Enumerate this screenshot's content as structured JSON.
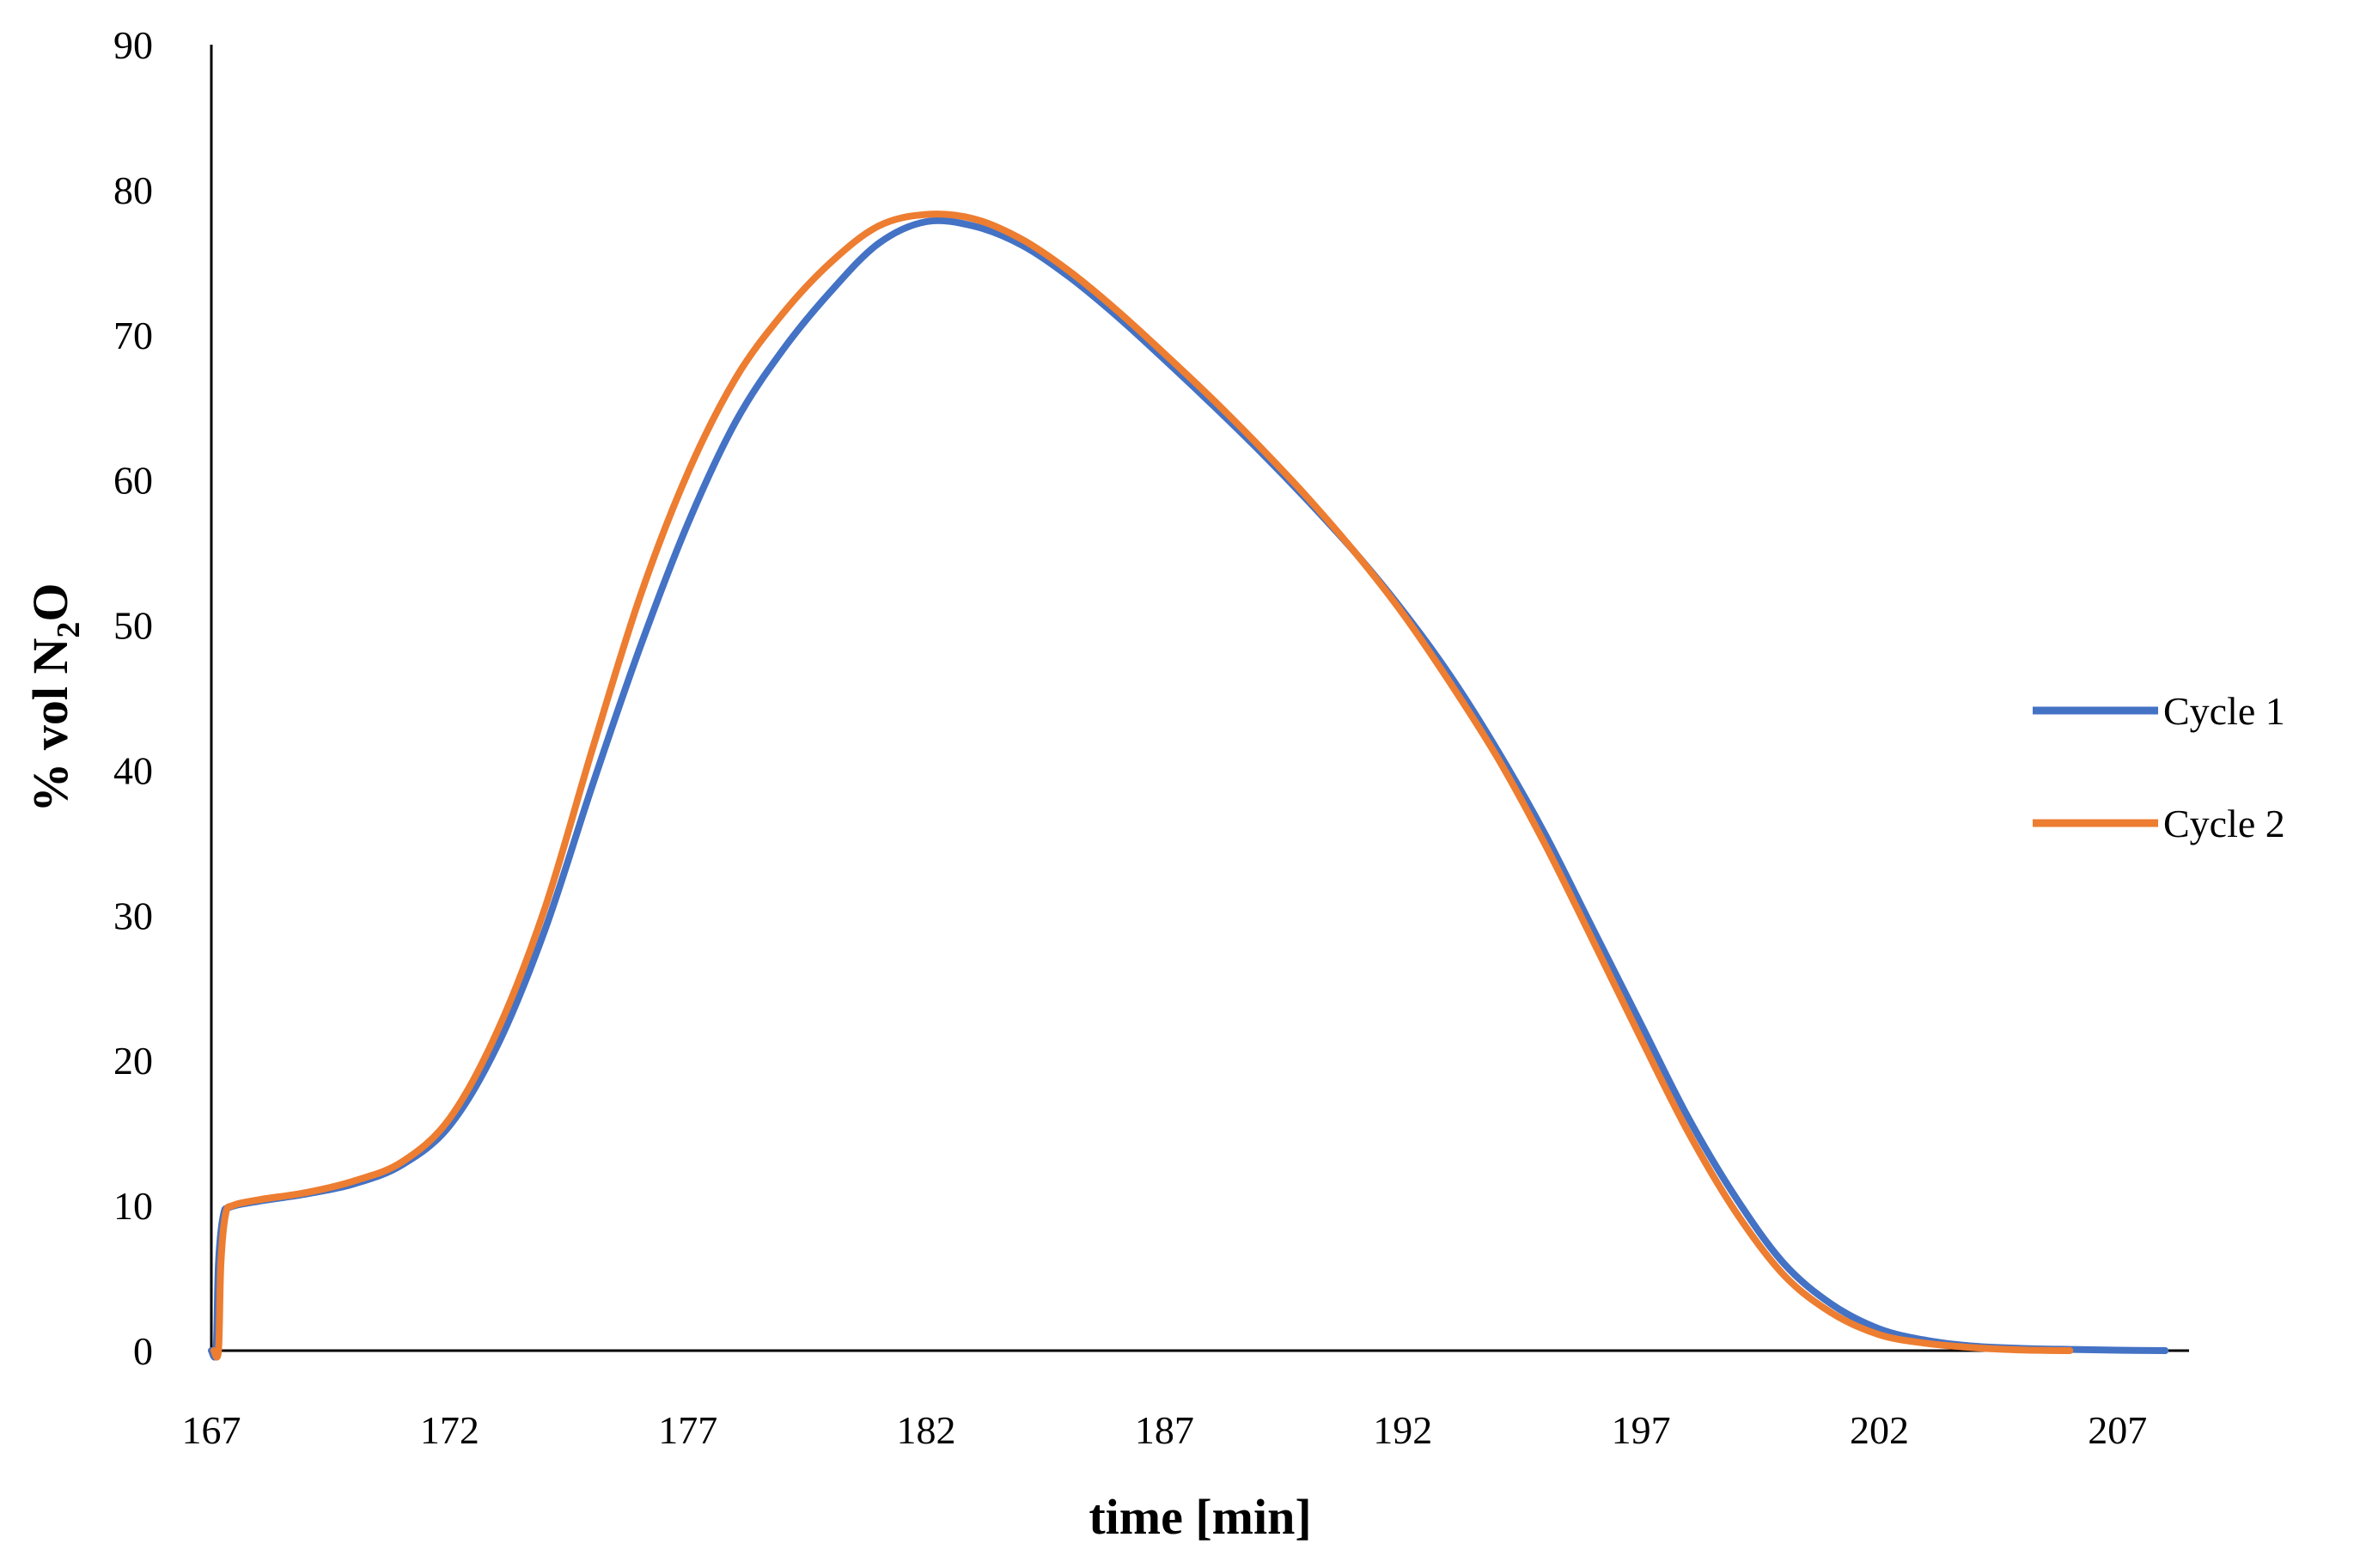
{
  "chart_data": {
    "type": "line",
    "title": "",
    "xlabel": "time [min]",
    "ylabel_parts": [
      "% vol N",
      "2",
      "O"
    ],
    "xlim": [
      167,
      208.5
    ],
    "ylim": [
      0,
      90
    ],
    "x_ticks": [
      "167",
      "172",
      "177",
      "182",
      "187",
      "192",
      "197",
      "202",
      "207"
    ],
    "y_ticks": [
      "0",
      "10",
      "20",
      "30",
      "40",
      "50",
      "60",
      "70",
      "80",
      "90"
    ],
    "grid": false,
    "legend_position": "right",
    "series": [
      {
        "name": "Cycle 1",
        "color": "#4472C4",
        "points": [
          [
            167.0,
            0
          ],
          [
            167.1,
            0
          ],
          [
            167.15,
            6
          ],
          [
            167.25,
            9.3
          ],
          [
            167.4,
            9.9
          ],
          [
            168.0,
            10.3
          ],
          [
            169.0,
            10.8
          ],
          [
            170.0,
            11.5
          ],
          [
            171.0,
            12.8
          ],
          [
            172.0,
            15.5
          ],
          [
            173.0,
            21
          ],
          [
            174.0,
            29
          ],
          [
            175.0,
            39
          ],
          [
            176.0,
            48.5
          ],
          [
            177.0,
            57
          ],
          [
            178.0,
            64
          ],
          [
            179.0,
            69
          ],
          [
            180.0,
            73
          ],
          [
            181.0,
            76.3
          ],
          [
            182.0,
            77.8
          ],
          [
            183.0,
            77.5
          ],
          [
            184.0,
            76.2
          ],
          [
            185.0,
            74
          ],
          [
            186.0,
            71.3
          ],
          [
            187.0,
            68.3
          ],
          [
            188.0,
            65.2
          ],
          [
            189.0,
            62
          ],
          [
            190.0,
            58.6
          ],
          [
            191.0,
            55
          ],
          [
            192.0,
            51
          ],
          [
            193.0,
            46.5
          ],
          [
            194.0,
            41.3
          ],
          [
            195.0,
            35.5
          ],
          [
            196.0,
            29
          ],
          [
            197.0,
            22.5
          ],
          [
            198.0,
            16
          ],
          [
            199.0,
            10.5
          ],
          [
            200.0,
            6
          ],
          [
            201.0,
            3.2
          ],
          [
            202.0,
            1.5
          ],
          [
            203.0,
            0.7
          ],
          [
            204.0,
            0.3
          ],
          [
            205.0,
            0.15
          ],
          [
            206.0,
            0.08
          ],
          [
            207.0,
            0.03
          ],
          [
            208.0,
            0
          ]
        ]
      },
      {
        "name": "Cycle 2",
        "color": "#ED7D31",
        "points": [
          [
            167.05,
            0
          ],
          [
            167.15,
            0
          ],
          [
            167.2,
            6
          ],
          [
            167.3,
            9.4
          ],
          [
            167.45,
            10
          ],
          [
            168.0,
            10.4
          ],
          [
            169.0,
            10.9
          ],
          [
            170.0,
            11.7
          ],
          [
            171.0,
            13
          ],
          [
            172.0,
            16
          ],
          [
            173.0,
            22
          ],
          [
            174.0,
            30.5
          ],
          [
            175.0,
            41.5
          ],
          [
            176.0,
            52
          ],
          [
            177.0,
            60.5
          ],
          [
            178.0,
            67
          ],
          [
            179.0,
            71.5
          ],
          [
            180.0,
            75
          ],
          [
            181.0,
            77.5
          ],
          [
            182.0,
            78.3
          ],
          [
            183.0,
            78
          ],
          [
            184.0,
            76.6
          ],
          [
            185.0,
            74.4
          ],
          [
            186.0,
            71.7
          ],
          [
            187.0,
            68.7
          ],
          [
            188.0,
            65.6
          ],
          [
            189.0,
            62.3
          ],
          [
            190.0,
            58.8
          ],
          [
            191.0,
            55
          ],
          [
            192.0,
            50.8
          ],
          [
            193.0,
            46
          ],
          [
            194.0,
            40.8
          ],
          [
            195.0,
            34.8
          ],
          [
            196.0,
            28.2
          ],
          [
            197.0,
            21.5
          ],
          [
            198.0,
            15
          ],
          [
            199.0,
            9.5
          ],
          [
            200.0,
            5.2
          ],
          [
            201.0,
            2.6
          ],
          [
            202.0,
            1.1
          ],
          [
            203.0,
            0.5
          ],
          [
            204.0,
            0.2
          ],
          [
            205.0,
            0.05
          ],
          [
            206.0,
            0
          ]
        ]
      }
    ]
  }
}
